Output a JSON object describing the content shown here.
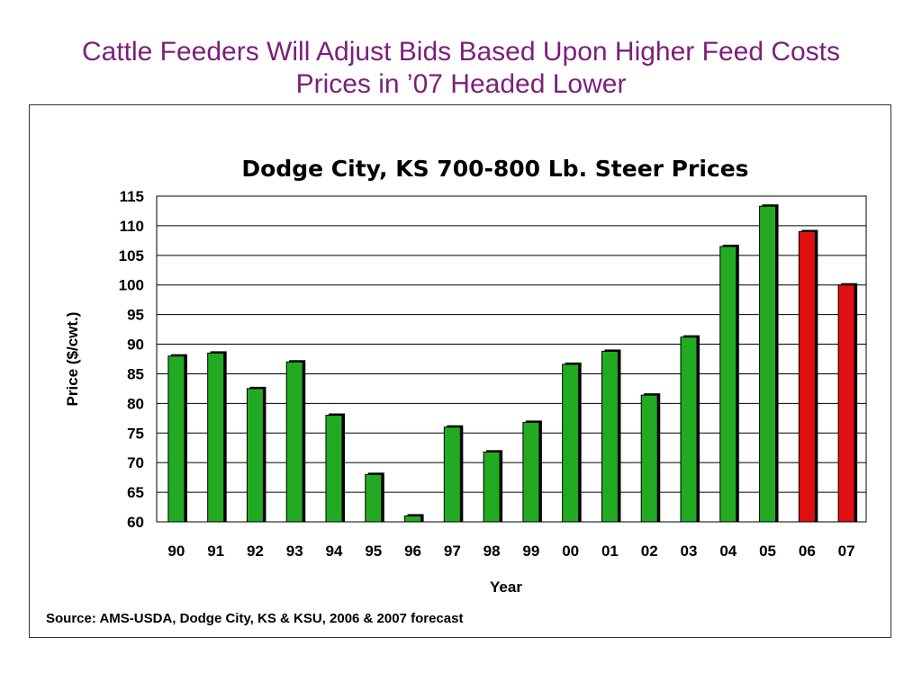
{
  "slide": {
    "title_line1": "Cattle Feeders Will Adjust Bids Based Upon Higher Feed Costs",
    "title_line2": "Prices in ’07 Headed Lower"
  },
  "colors": {
    "title": "#7b1f7a",
    "historical_bar": "#22aa22",
    "forecast_bar": "#e01010",
    "bar_shadow": "#000000",
    "grid": "#000000"
  },
  "chart_data": {
    "type": "bar",
    "title": "Dodge City, KS 700-800 Lb. Steer Prices",
    "xlabel": "Year",
    "ylabel": "Price ($/cwt.)",
    "ylim": [
      60,
      115
    ],
    "yticks": [
      60,
      65,
      70,
      75,
      80,
      85,
      90,
      95,
      100,
      105,
      110,
      115
    ],
    "grid": true,
    "categories": [
      "90",
      "91",
      "92",
      "93",
      "94",
      "95",
      "96",
      "97",
      "98",
      "99",
      "00",
      "01",
      "02",
      "03",
      "04",
      "05",
      "06",
      "07"
    ],
    "values": [
      88.0,
      88.5,
      82.5,
      87.0,
      78.0,
      68.0,
      61.0,
      76.0,
      71.8,
      76.8,
      86.6,
      88.8,
      81.4,
      91.2,
      106.5,
      113.3,
      109.0,
      100.0
    ],
    "forecast": [
      false,
      false,
      false,
      false,
      false,
      false,
      false,
      false,
      false,
      false,
      false,
      false,
      false,
      false,
      false,
      false,
      true,
      true
    ],
    "source": "Source:  AMS-USDA, Dodge City, KS & KSU,  2006 & 2007 forecast"
  }
}
